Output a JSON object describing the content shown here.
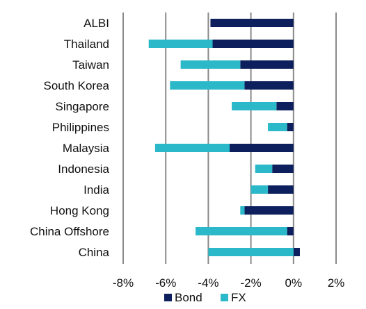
{
  "chart_data": {
    "type": "bar",
    "orientation": "horizontal",
    "stacked": true,
    "categories": [
      "ALBI",
      "Thailand",
      "Taiwan",
      "South Korea",
      "Singapore",
      "Philippines",
      "Malaysia",
      "Indonesia",
      "India",
      "Hong Kong",
      "China Offshore",
      "China"
    ],
    "series": [
      {
        "name": "Bond",
        "color": "#0d1f5c",
        "values": [
          -3.9,
          -3.8,
          -2.5,
          -2.3,
          -0.8,
          -0.3,
          -3.0,
          -1.0,
          -1.2,
          -2.3,
          -0.3,
          0.3
        ]
      },
      {
        "name": "FX",
        "color": "#2bb8c8",
        "values": [
          0.0,
          -3.0,
          -2.8,
          -3.5,
          -2.1,
          -0.9,
          -3.5,
          -0.8,
          -0.8,
          -0.2,
          -4.3,
          -4.0
        ]
      }
    ],
    "xticks": [
      "-8%",
      "-6%",
      "-4%",
      "-2%",
      "0%",
      "2%"
    ],
    "xlim": [
      -8,
      2
    ],
    "grid": "vertical",
    "legend": "bottom",
    "title": "",
    "xlabel": "",
    "ylabel": ""
  }
}
